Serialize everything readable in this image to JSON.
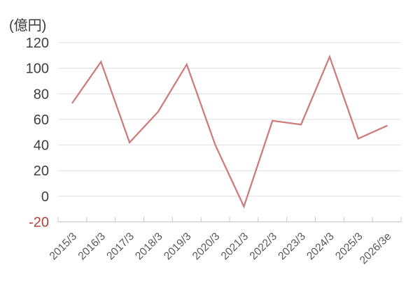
{
  "chart_data": {
    "type": "line",
    "title": "",
    "ylabel": "(億円)",
    "xlabel": "",
    "categories": [
      "2015/3",
      "2016/3",
      "2017/3",
      "2018/3",
      "2019/3",
      "2020/3",
      "2021/3",
      "2022/3",
      "2023/3",
      "2024/3",
      "2025/3",
      "2026/3e"
    ],
    "values": [
      73,
      105,
      42,
      66,
      103,
      40,
      -8,
      59,
      56,
      109,
      45,
      55
    ],
    "y_ticks": [
      120,
      100,
      80,
      60,
      40,
      20,
      0,
      -20
    ],
    "ylim": [
      -20,
      120
    ],
    "grid": "horizontal",
    "legend_position": "none",
    "colors": {
      "line": "#cd7d7d",
      "grid": "#dfdfdf",
      "axis": "#c8c8c8",
      "y_label": "#404040",
      "y_label_negative": "#b0413e",
      "x_label": "#595959",
      "unit_label": "#3a3a3a",
      "background": "#ffffff"
    }
  }
}
